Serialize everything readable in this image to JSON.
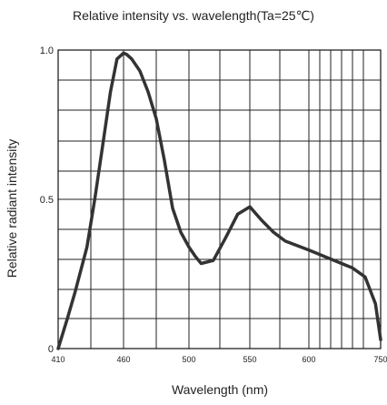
{
  "chart_data": {
    "type": "line",
    "title": "Relative intensity vs. wavelength(Ta=25℃)",
    "xlabel": "Wavelength (nm)",
    "ylabel": "Relative radiant intensity",
    "xlim": [
      410,
      750
    ],
    "ylim": [
      0,
      1.0
    ],
    "x_ticks": [
      "410",
      "460",
      "500",
      "550",
      "600",
      "750"
    ],
    "y_ticks": [
      "0",
      "0.5",
      "1.0"
    ],
    "grid": true,
    "series": [
      {
        "color": "#333333",
        "x": [
          410,
          417,
          423,
          432,
          438,
          444,
          450,
          455,
          460,
          462,
          465,
          470,
          475,
          480,
          485,
          490,
          495,
          500,
          505,
          510,
          520,
          530,
          540,
          550,
          560,
          570,
          580,
          600,
          620,
          640,
          660,
          680,
          700,
          720,
          750
        ],
        "y": [
          0.0,
          0.1,
          0.19,
          0.34,
          0.5,
          0.68,
          0.86,
          0.97,
          0.99,
          0.985,
          0.97,
          0.93,
          0.86,
          0.77,
          0.63,
          0.47,
          0.39,
          0.34,
          0.31,
          0.285,
          0.295,
          0.37,
          0.45,
          0.475,
          0.43,
          0.39,
          0.36,
          0.33,
          0.3,
          0.27,
          0.24,
          0.21,
          0.18,
          0.15,
          0.03
        ]
      }
    ]
  }
}
